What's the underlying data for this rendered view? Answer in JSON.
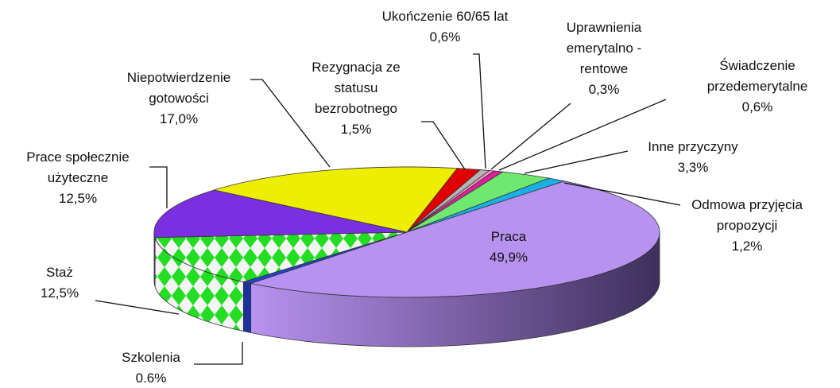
{
  "chart_data": {
    "type": "pie3d",
    "categories": [
      "Rezygnacja ze statusu bezrobotnego",
      "Ukończenie 60/65 lat",
      "Uprawnienia emerytalno - rentowe",
      "Świadczenie przedemerytalne",
      "Inne przyczyny",
      "Odmowa przyjęcia propozycji",
      "Praca",
      "Szkolenia",
      "Staż",
      "Prace społecznie użyteczne",
      "Niepotwierdzenie gotowości"
    ],
    "values": [
      1.5,
      0.6,
      0.3,
      0.6,
      3.3,
      1.2,
      49.9,
      0.6,
      12.5,
      12.5,
      17.0
    ],
    "value_labels": [
      "1,5%",
      "0,6%",
      "0,3%",
      "0,6%",
      "3,3%",
      "1,2%",
      "49,9%",
      "0.6%",
      "12,5%",
      "12,5%",
      "17,0%"
    ],
    "colors": [
      "#e00000",
      "#b4b4b4",
      "#ff99cc",
      "#e0209a",
      "#6ee86e",
      "#1ab0e6",
      "#b892f0",
      "#2242d0",
      "pattern",
      "#7a30e0",
      "#eeee00"
    ]
  }
}
